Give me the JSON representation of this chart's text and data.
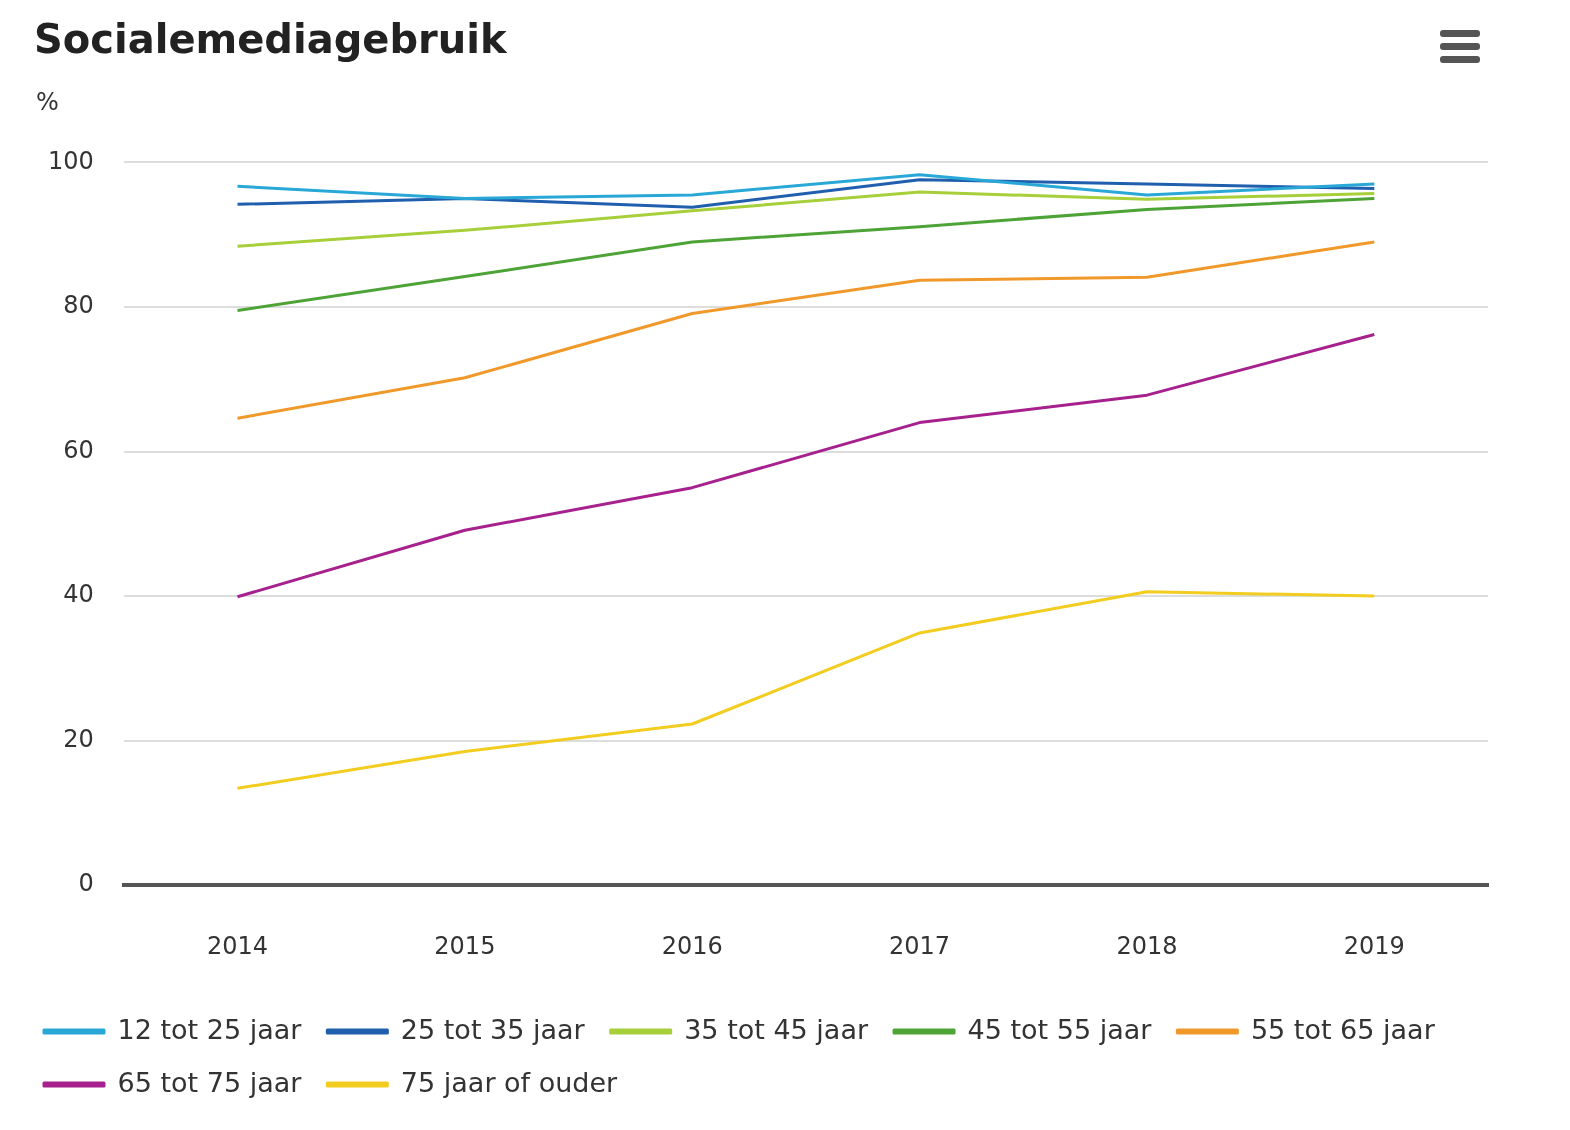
{
  "chart_data": {
    "type": "line",
    "title": "Socialemediagebruik",
    "ylabel": "%",
    "categories": [
      "2014",
      "2015",
      "2016",
      "2017",
      "2018",
      "2019"
    ],
    "series": [
      {
        "name": "12 tot 25 jaar",
        "color": "#29a8d8",
        "values": [
          96.7,
          95,
          95.5,
          98.3,
          95.5,
          97
        ]
      },
      {
        "name": "25 tot 35 jaar",
        "color": "#1f5fae",
        "values": [
          94.2,
          95,
          93.8,
          97.6,
          97,
          96.4
        ]
      },
      {
        "name": "35 tot 45 jaar",
        "color": "#a6cf3a",
        "values": [
          88.4,
          90.6,
          93.3,
          95.9,
          94.9,
          95.7
        ]
      },
      {
        "name": "45 tot 55 jaar",
        "color": "#4ea337",
        "values": [
          79.5,
          84.2,
          89,
          91.1,
          93.5,
          95
        ]
      },
      {
        "name": "55 tot 65 jaar",
        "color": "#f0992a",
        "values": [
          64.6,
          70.2,
          79.1,
          83.7,
          84.1,
          89
        ]
      },
      {
        "name": "65 tot 75 jaar",
        "color": "#a6208e",
        "values": [
          39.9,
          49.1,
          55,
          64,
          67.8,
          76.2
        ]
      },
      {
        "name": "75 jaar of ouder",
        "color": "#f2cc1f",
        "values": [
          13.4,
          18.5,
          22.3,
          34.9,
          40.6,
          40
        ]
      }
    ],
    "ylim": [
      0,
      100
    ],
    "yticks": [
      0,
      20,
      40,
      60,
      80,
      100
    ],
    "grid": "y",
    "legend": "bottom",
    "marker": "none",
    "line_style": "solid"
  }
}
